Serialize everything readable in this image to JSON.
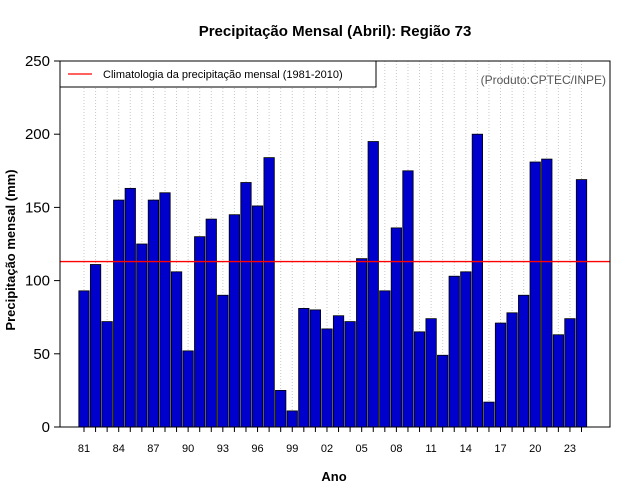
{
  "chart_data": {
    "type": "bar",
    "title": "Precipitação Mensal (Abril): Região 73",
    "xlabel": "Ano",
    "ylabel": "Precipitação mensal (mm)",
    "ylim": [
      0,
      250
    ],
    "yticks": [
      0,
      50,
      100,
      150,
      200,
      250
    ],
    "credit": "(Produto:CPTEC/INPE)",
    "categories": [
      "81",
      "82",
      "83",
      "84",
      "85",
      "86",
      "87",
      "88",
      "89",
      "90",
      "91",
      "92",
      "93",
      "94",
      "95",
      "96",
      "97",
      "98",
      "99",
      "00",
      "01",
      "02",
      "03",
      "04",
      "05",
      "06",
      "07",
      "08",
      "09",
      "10",
      "11",
      "12",
      "13",
      "14",
      "15",
      "16",
      "17",
      "18",
      "19",
      "20",
      "21",
      "22",
      "23",
      "24"
    ],
    "xtick_labels": [
      "81",
      "84",
      "87",
      "90",
      "93",
      "96",
      "99",
      "02",
      "05",
      "08",
      "11",
      "14",
      "17",
      "20",
      "23"
    ],
    "series": [
      {
        "name": "Precipitação mensal",
        "color": "#0000cc",
        "values": [
          93,
          111,
          72,
          155,
          163,
          125,
          155,
          160,
          106,
          52,
          130,
          142,
          90,
          145,
          167,
          151,
          184,
          25,
          11,
          81,
          80,
          67,
          76,
          72,
          115,
          195,
          93,
          136,
          175,
          65,
          74,
          49,
          103,
          106,
          200,
          17,
          71,
          78,
          90,
          181,
          183,
          63,
          74,
          169
        ]
      }
    ],
    "reference_line": {
      "label": "Climatologia da precipitação mensal (1981-2010)",
      "value": 113,
      "color": "#ff0000"
    },
    "grid": "vertical dotted",
    "legend": "top-left"
  }
}
